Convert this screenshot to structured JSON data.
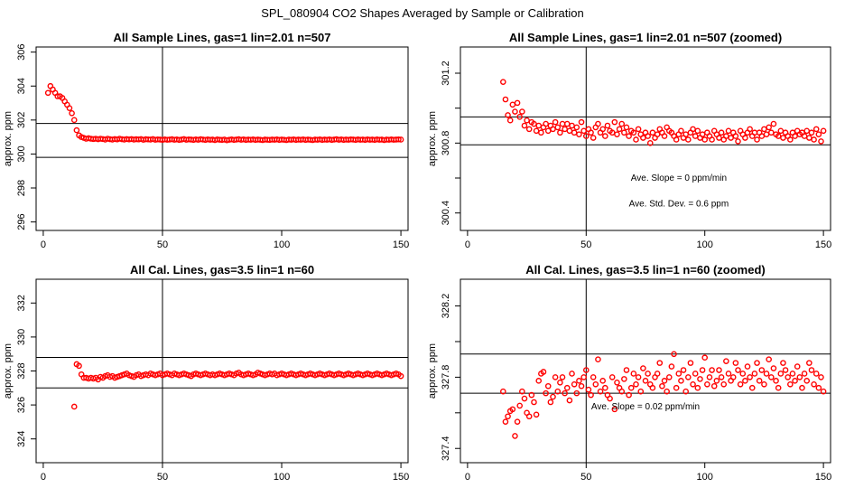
{
  "figure_title": "SPL_080904  CO2 Shapes Averaged by Sample or Calibration",
  "chart_data": [
    {
      "type": "scatter",
      "title": "All Sample Lines, gas=1 lin=2.01 n=507",
      "xlabel": "",
      "ylabel": "approx. ppm",
      "xlim": [
        -3,
        153
      ],
      "ylim": [
        295.5,
        306.3
      ],
      "xticks": [
        0,
        50,
        100,
        150
      ],
      "yticks": [
        296,
        298,
        300,
        302,
        304,
        306
      ],
      "ytick_labels": [
        "296",
        "298",
        "300",
        "302",
        "304",
        "306"
      ],
      "vline": 50,
      "hlines": [
        301.8,
        299.8
      ],
      "marker_color": "#ff0000",
      "annotations": [],
      "x": [
        2,
        3,
        4,
        5,
        6,
        7,
        8,
        9,
        10,
        11,
        12,
        13,
        14,
        15,
        16,
        17,
        18,
        19,
        20,
        21,
        22,
        23,
        24,
        25,
        26,
        27,
        28,
        29,
        30,
        31,
        32,
        33,
        34,
        35,
        36,
        37,
        38,
        39,
        40,
        41,
        42,
        43,
        44,
        45,
        46,
        47,
        48,
        49,
        50,
        51,
        52,
        53,
        54,
        55,
        56,
        57,
        58,
        59,
        60,
        61,
        62,
        63,
        64,
        65,
        66,
        67,
        68,
        69,
        70,
        71,
        72,
        73,
        74,
        75,
        76,
        77,
        78,
        79,
        80,
        81,
        82,
        83,
        84,
        85,
        86,
        87,
        88,
        89,
        90,
        91,
        92,
        93,
        94,
        95,
        96,
        97,
        98,
        99,
        100,
        101,
        102,
        103,
        104,
        105,
        106,
        107,
        108,
        109,
        110,
        111,
        112,
        113,
        114,
        115,
        116,
        117,
        118,
        119,
        120,
        121,
        122,
        123,
        124,
        125,
        126,
        127,
        128,
        129,
        130,
        131,
        132,
        133,
        134,
        135,
        136,
        137,
        138,
        139,
        140,
        141,
        142,
        143,
        144,
        145,
        146,
        147,
        148,
        149,
        150
      ],
      "y": [
        303.6,
        304.0,
        303.8,
        303.6,
        303.4,
        303.4,
        303.3,
        303.1,
        302.9,
        302.7,
        302.4,
        302.0,
        301.4,
        301.1,
        301.0,
        300.95,
        300.9,
        300.93,
        300.9,
        300.88,
        300.9,
        300.87,
        300.9,
        300.88,
        300.85,
        300.9,
        300.87,
        300.85,
        300.88,
        300.86,
        300.9,
        300.87,
        300.85,
        300.88,
        300.86,
        300.88,
        300.85,
        300.87,
        300.86,
        300.88,
        300.84,
        300.87,
        300.86,
        300.85,
        300.88,
        300.84,
        300.86,
        300.85,
        300.83,
        300.86,
        300.84,
        300.85,
        300.87,
        300.84,
        300.86,
        300.83,
        300.85,
        300.88,
        300.84,
        300.86,
        300.85,
        300.83,
        300.86,
        300.84,
        300.87,
        300.85,
        300.83,
        300.86,
        300.84,
        300.85,
        300.82,
        300.86,
        300.84,
        300.83,
        300.85,
        300.81,
        300.84,
        300.86,
        300.83,
        300.85,
        300.87,
        300.84,
        300.86,
        300.83,
        300.85,
        300.84,
        300.86,
        300.83,
        300.85,
        300.84,
        300.82,
        300.85,
        300.84,
        300.83,
        300.85,
        300.84,
        300.86,
        300.83,
        300.85,
        300.84,
        300.82,
        300.85,
        300.84,
        300.86,
        300.83,
        300.85,
        300.84,
        300.86,
        300.83,
        300.85,
        300.84,
        300.82,
        300.85,
        300.84,
        300.86,
        300.83,
        300.85,
        300.84,
        300.86,
        300.83,
        300.85,
        300.87,
        300.84,
        300.86,
        300.83,
        300.85,
        300.84,
        300.86,
        300.85,
        300.83,
        300.86,
        300.84,
        300.85,
        300.83,
        300.86,
        300.84,
        300.85,
        300.83,
        300.86,
        300.84,
        300.85,
        300.82,
        300.85,
        300.84,
        300.86,
        300.84,
        300.85,
        300.86,
        300.85
      ]
    },
    {
      "type": "scatter",
      "title": "All Sample Lines, gas=1 lin=2.01 n=507 (zoomed)",
      "xlabel": "",
      "ylabel": "approx. ppm",
      "xlim": [
        -3,
        153
      ],
      "ylim": [
        300.3,
        301.35
      ],
      "xticks": [
        0,
        50,
        100,
        150
      ],
      "yticks": [
        300.4,
        300.6,
        300.8,
        301.0,
        301.2
      ],
      "ytick_labels": [
        "300.4",
        "",
        "300.8",
        "",
        "301.2"
      ],
      "vline": 50,
      "hlines": [
        300.95,
        300.79
      ],
      "marker_color": "#ff0000",
      "annotations": [
        "Ave. Slope =  0  ppm/min",
        "Ave. Std. Dev. =  0.6  ppm"
      ],
      "x": [
        15,
        16,
        17,
        18,
        19,
        20,
        21,
        22,
        23,
        24,
        25,
        26,
        27,
        28,
        29,
        30,
        31,
        32,
        33,
        34,
        35,
        36,
        37,
        38,
        39,
        40,
        41,
        42,
        43,
        44,
        45,
        46,
        47,
        48,
        49,
        50,
        51,
        52,
        53,
        54,
        55,
        56,
        57,
        58,
        59,
        60,
        61,
        62,
        63,
        64,
        65,
        66,
        67,
        68,
        69,
        70,
        71,
        72,
        73,
        74,
        75,
        76,
        77,
        78,
        79,
        80,
        81,
        82,
        83,
        84,
        85,
        86,
        87,
        88,
        89,
        90,
        91,
        92,
        93,
        94,
        95,
        96,
        97,
        98,
        99,
        100,
        101,
        102,
        103,
        104,
        105,
        106,
        107,
        108,
        109,
        110,
        111,
        112,
        113,
        114,
        115,
        116,
        117,
        118,
        119,
        120,
        121,
        122,
        123,
        124,
        125,
        126,
        127,
        128,
        129,
        130,
        131,
        132,
        133,
        134,
        135,
        136,
        137,
        138,
        139,
        140,
        141,
        142,
        143,
        144,
        145,
        146,
        147,
        148,
        149,
        150
      ],
      "y": [
        301.15,
        301.05,
        300.96,
        300.93,
        301.02,
        300.98,
        301.03,
        300.95,
        300.98,
        300.9,
        300.93,
        300.88,
        300.92,
        300.91,
        300.87,
        300.9,
        300.86,
        300.89,
        300.91,
        300.87,
        300.9,
        300.88,
        300.92,
        300.89,
        300.86,
        300.91,
        300.88,
        300.91,
        300.87,
        300.9,
        300.86,
        300.89,
        300.85,
        300.92,
        300.87,
        300.84,
        300.88,
        300.86,
        300.83,
        300.89,
        300.91,
        300.86,
        300.88,
        300.84,
        300.9,
        300.87,
        300.86,
        300.92,
        300.85,
        300.88,
        300.91,
        300.86,
        300.89,
        300.84,
        300.87,
        300.86,
        300.82,
        300.88,
        300.85,
        300.83,
        300.86,
        300.84,
        300.8,
        300.86,
        300.83,
        300.85,
        300.88,
        300.86,
        300.84,
        300.89,
        300.87,
        300.86,
        300.84,
        300.82,
        300.85,
        300.87,
        300.83,
        300.85,
        300.82,
        300.86,
        300.88,
        300.84,
        300.87,
        300.83,
        300.85,
        300.82,
        300.86,
        300.84,
        300.82,
        300.87,
        300.85,
        300.83,
        300.86,
        300.82,
        300.84,
        300.87,
        300.83,
        300.86,
        300.84,
        300.81,
        300.87,
        300.85,
        300.83,
        300.86,
        300.88,
        300.84,
        300.86,
        300.82,
        300.86,
        300.84,
        300.88,
        300.85,
        300.89,
        300.86,
        300.91,
        300.85,
        300.84,
        300.87,
        300.83,
        300.86,
        300.84,
        300.82,
        300.86,
        300.84,
        300.87,
        300.85,
        300.86,
        300.84,
        300.87,
        300.83,
        300.86,
        300.82,
        300.88,
        300.85,
        300.81,
        300.87
      ]
    },
    {
      "type": "scatter",
      "title": "All Cal. Lines, gas=3.5 lin=1 n=60",
      "xlabel": "",
      "ylabel": "approx. ppm",
      "xlim": [
        -3,
        153
      ],
      "ylim": [
        322.6,
        333.4
      ],
      "xticks": [
        0,
        50,
        100,
        150
      ],
      "yticks": [
        324,
        326,
        328,
        330,
        332
      ],
      "ytick_labels": [
        "324",
        "326",
        "328",
        "330",
        "332"
      ],
      "vline": 50,
      "hlines": [
        328.8,
        327.0
      ],
      "marker_color": "#ff0000",
      "annotations": [],
      "x": [
        13,
        14,
        15,
        16,
        17,
        18,
        19,
        20,
        21,
        22,
        23,
        24,
        25,
        26,
        27,
        28,
        29,
        30,
        31,
        32,
        33,
        34,
        35,
        36,
        37,
        38,
        39,
        40,
        41,
        42,
        43,
        44,
        45,
        46,
        47,
        48,
        49,
        50,
        51,
        52,
        53,
        54,
        55,
        56,
        57,
        58,
        59,
        60,
        61,
        62,
        63,
        64,
        65,
        66,
        67,
        68,
        69,
        70,
        71,
        72,
        73,
        74,
        75,
        76,
        77,
        78,
        79,
        80,
        81,
        82,
        83,
        84,
        85,
        86,
        87,
        88,
        89,
        90,
        91,
        92,
        93,
        94,
        95,
        96,
        97,
        98,
        99,
        100,
        101,
        102,
        103,
        104,
        105,
        106,
        107,
        108,
        109,
        110,
        111,
        112,
        113,
        114,
        115,
        116,
        117,
        118,
        119,
        120,
        121,
        122,
        123,
        124,
        125,
        126,
        127,
        128,
        129,
        130,
        131,
        132,
        133,
        134,
        135,
        136,
        137,
        138,
        139,
        140,
        141,
        142,
        143,
        144,
        145,
        146,
        147,
        148,
        149,
        150
      ],
      "y": [
        325.9,
        328.4,
        328.3,
        327.8,
        327.6,
        327.6,
        327.55,
        327.6,
        327.55,
        327.6,
        327.5,
        327.65,
        327.6,
        327.7,
        327.75,
        327.65,
        327.7,
        327.6,
        327.65,
        327.7,
        327.75,
        327.8,
        327.85,
        327.75,
        327.7,
        327.65,
        327.75,
        327.8,
        327.7,
        327.75,
        327.8,
        327.75,
        327.85,
        327.8,
        327.75,
        327.8,
        327.85,
        327.75,
        327.8,
        327.85,
        327.8,
        327.75,
        327.85,
        327.8,
        327.75,
        327.8,
        327.85,
        327.8,
        327.75,
        327.7,
        327.8,
        327.85,
        327.8,
        327.75,
        327.8,
        327.85,
        327.8,
        327.75,
        327.8,
        327.75,
        327.8,
        327.85,
        327.8,
        327.75,
        327.8,
        327.85,
        327.8,
        327.75,
        327.85,
        327.9,
        327.8,
        327.75,
        327.8,
        327.85,
        327.8,
        327.75,
        327.8,
        327.9,
        327.85,
        327.8,
        327.75,
        327.8,
        327.85,
        327.8,
        327.85,
        327.75,
        327.8,
        327.85,
        327.8,
        327.75,
        327.8,
        327.85,
        327.8,
        327.75,
        327.8,
        327.85,
        327.8,
        327.75,
        327.8,
        327.85,
        327.8,
        327.75,
        327.8,
        327.85,
        327.8,
        327.75,
        327.8,
        327.85,
        327.8,
        327.75,
        327.8,
        327.85,
        327.8,
        327.75,
        327.8,
        327.85,
        327.8,
        327.75,
        327.8,
        327.85,
        327.8,
        327.75,
        327.8,
        327.85,
        327.8,
        327.75,
        327.8,
        327.85,
        327.8,
        327.75,
        327.8,
        327.85,
        327.8,
        327.75,
        327.8,
        327.85,
        327.8,
        327.7
      ]
    },
    {
      "type": "scatter",
      "title": "All Cal. Lines, gas=3.5 lin=1 n=60 (zoomed)",
      "xlabel": "",
      "ylabel": "approx. ppm",
      "xlim": [
        -3,
        153
      ],
      "ylim": [
        327.32,
        328.35
      ],
      "xticks": [
        0,
        50,
        100,
        150
      ],
      "yticks": [
        327.4,
        327.6,
        327.8,
        328.0,
        328.2
      ],
      "ytick_labels": [
        "327.4",
        "",
        "327.8",
        "",
        "328.2"
      ],
      "vline": 50,
      "hlines": [
        327.93,
        327.71
      ],
      "marker_color": "#ff0000",
      "annotations": [
        "Ave. Slope =  0.02  ppm/min"
      ],
      "x": [
        15,
        16,
        17,
        18,
        19,
        20,
        21,
        22,
        23,
        24,
        25,
        26,
        27,
        28,
        29,
        30,
        31,
        32,
        33,
        34,
        35,
        36,
        37,
        38,
        39,
        40,
        41,
        42,
        43,
        44,
        45,
        46,
        47,
        48,
        49,
        50,
        51,
        52,
        53,
        54,
        55,
        56,
        57,
        58,
        59,
        60,
        61,
        62,
        63,
        64,
        65,
        66,
        67,
        68,
        69,
        70,
        71,
        72,
        73,
        74,
        75,
        76,
        77,
        78,
        79,
        80,
        81,
        82,
        83,
        84,
        85,
        86,
        87,
        88,
        89,
        90,
        91,
        92,
        93,
        94,
        95,
        96,
        97,
        98,
        99,
        100,
        101,
        102,
        103,
        104,
        105,
        106,
        107,
        108,
        109,
        110,
        111,
        112,
        113,
        114,
        115,
        116,
        117,
        118,
        119,
        120,
        121,
        122,
        123,
        124,
        125,
        126,
        127,
        128,
        129,
        130,
        131,
        132,
        133,
        134,
        135,
        136,
        137,
        138,
        139,
        140,
        141,
        142,
        143,
        144,
        145,
        146,
        147,
        148,
        149,
        150
      ],
      "y": [
        327.72,
        327.55,
        327.58,
        327.61,
        327.62,
        327.47,
        327.55,
        327.64,
        327.72,
        327.68,
        327.6,
        327.58,
        327.7,
        327.66,
        327.59,
        327.78,
        327.82,
        327.83,
        327.71,
        327.75,
        327.66,
        327.69,
        327.8,
        327.72,
        327.77,
        327.8,
        327.71,
        327.74,
        327.67,
        327.82,
        327.76,
        327.71,
        327.78,
        327.75,
        327.8,
        327.84,
        327.73,
        327.7,
        327.8,
        327.76,
        327.9,
        327.72,
        327.78,
        327.74,
        327.7,
        327.68,
        327.8,
        327.62,
        327.77,
        327.74,
        327.72,
        327.79,
        327.84,
        327.7,
        327.74,
        327.82,
        327.76,
        327.8,
        327.72,
        327.85,
        327.78,
        327.82,
        327.76,
        327.74,
        327.8,
        327.82,
        327.88,
        327.75,
        327.78,
        327.72,
        327.8,
        327.86,
        327.93,
        327.74,
        327.82,
        327.78,
        327.84,
        327.72,
        327.8,
        327.88,
        327.76,
        327.82,
        327.74,
        327.79,
        327.84,
        327.91,
        327.76,
        327.8,
        327.84,
        327.75,
        327.78,
        327.84,
        327.8,
        327.76,
        327.89,
        327.82,
        327.78,
        327.8,
        327.88,
        327.84,
        327.76,
        327.82,
        327.78,
        327.86,
        327.8,
        327.74,
        327.82,
        327.88,
        327.78,
        327.84,
        327.76,
        327.82,
        327.9,
        327.8,
        327.85,
        327.78,
        327.74,
        327.82,
        327.88,
        327.84,
        327.8,
        327.76,
        327.82,
        327.78,
        327.86,
        327.8,
        327.74,
        327.82,
        327.78,
        327.88,
        327.84,
        327.76,
        327.82,
        327.74,
        327.8,
        327.72
      ]
    }
  ]
}
